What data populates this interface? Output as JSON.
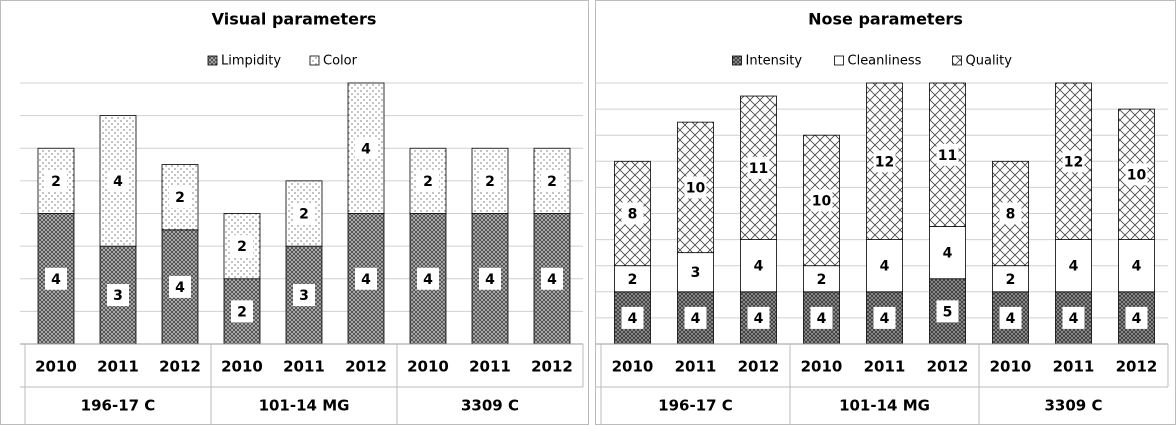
{
  "chart_data": [
    {
      "type": "bar",
      "stacked": true,
      "title": "Visual parameters",
      "categories": [
        "2010",
        "2011",
        "2012",
        "2010",
        "2011",
        "2012",
        "2010",
        "2011",
        "2012"
      ],
      "groups": [
        "196-17 C",
        "101-14 MG",
        "3309 C"
      ],
      "ylim": [
        0,
        8
      ],
      "yticks": [
        0,
        1,
        2,
        3,
        4,
        5,
        6,
        7,
        8
      ],
      "grid": true,
      "series": [
        {
          "name": "Limpidity",
          "color": "#555555",
          "values": [
            4,
            3,
            3.5,
            2,
            3,
            4,
            4,
            4,
            4
          ],
          "value_labels": [
            "4",
            "3",
            "4",
            "2",
            "3",
            "4",
            "4",
            "4",
            "4"
          ]
        },
        {
          "name": "Color",
          "color": "#ffffff",
          "values": [
            2,
            4,
            2,
            2,
            2,
            4,
            2,
            2,
            2
          ]
        }
      ]
    },
    {
      "type": "bar",
      "stacked": true,
      "title": "Nose parameters",
      "categories": [
        "2010",
        "2011",
        "2012",
        "2010",
        "2011",
        "2012",
        "2010",
        "2011",
        "2012"
      ],
      "groups": [
        "196-17 C",
        "101-14 MG",
        "3309 C"
      ],
      "ylim": [
        0,
        20
      ],
      "yticks": [
        0,
        2,
        4,
        6,
        8,
        10,
        12,
        14,
        16,
        18,
        20
      ],
      "grid": true,
      "series": [
        {
          "name": "Intensity",
          "color": "#555555",
          "values": [
            4,
            4,
            4,
            4,
            4,
            5,
            4,
            4,
            4
          ]
        },
        {
          "name": "Cleanliness",
          "color": "#ffffff",
          "values": [
            2,
            3,
            4,
            2,
            4,
            4,
            2,
            4,
            4
          ]
        },
        {
          "name": "Quality",
          "color": "#ffffff",
          "values": [
            8,
            10,
            11,
            10,
            12,
            11,
            8,
            12,
            10
          ]
        }
      ]
    }
  ]
}
